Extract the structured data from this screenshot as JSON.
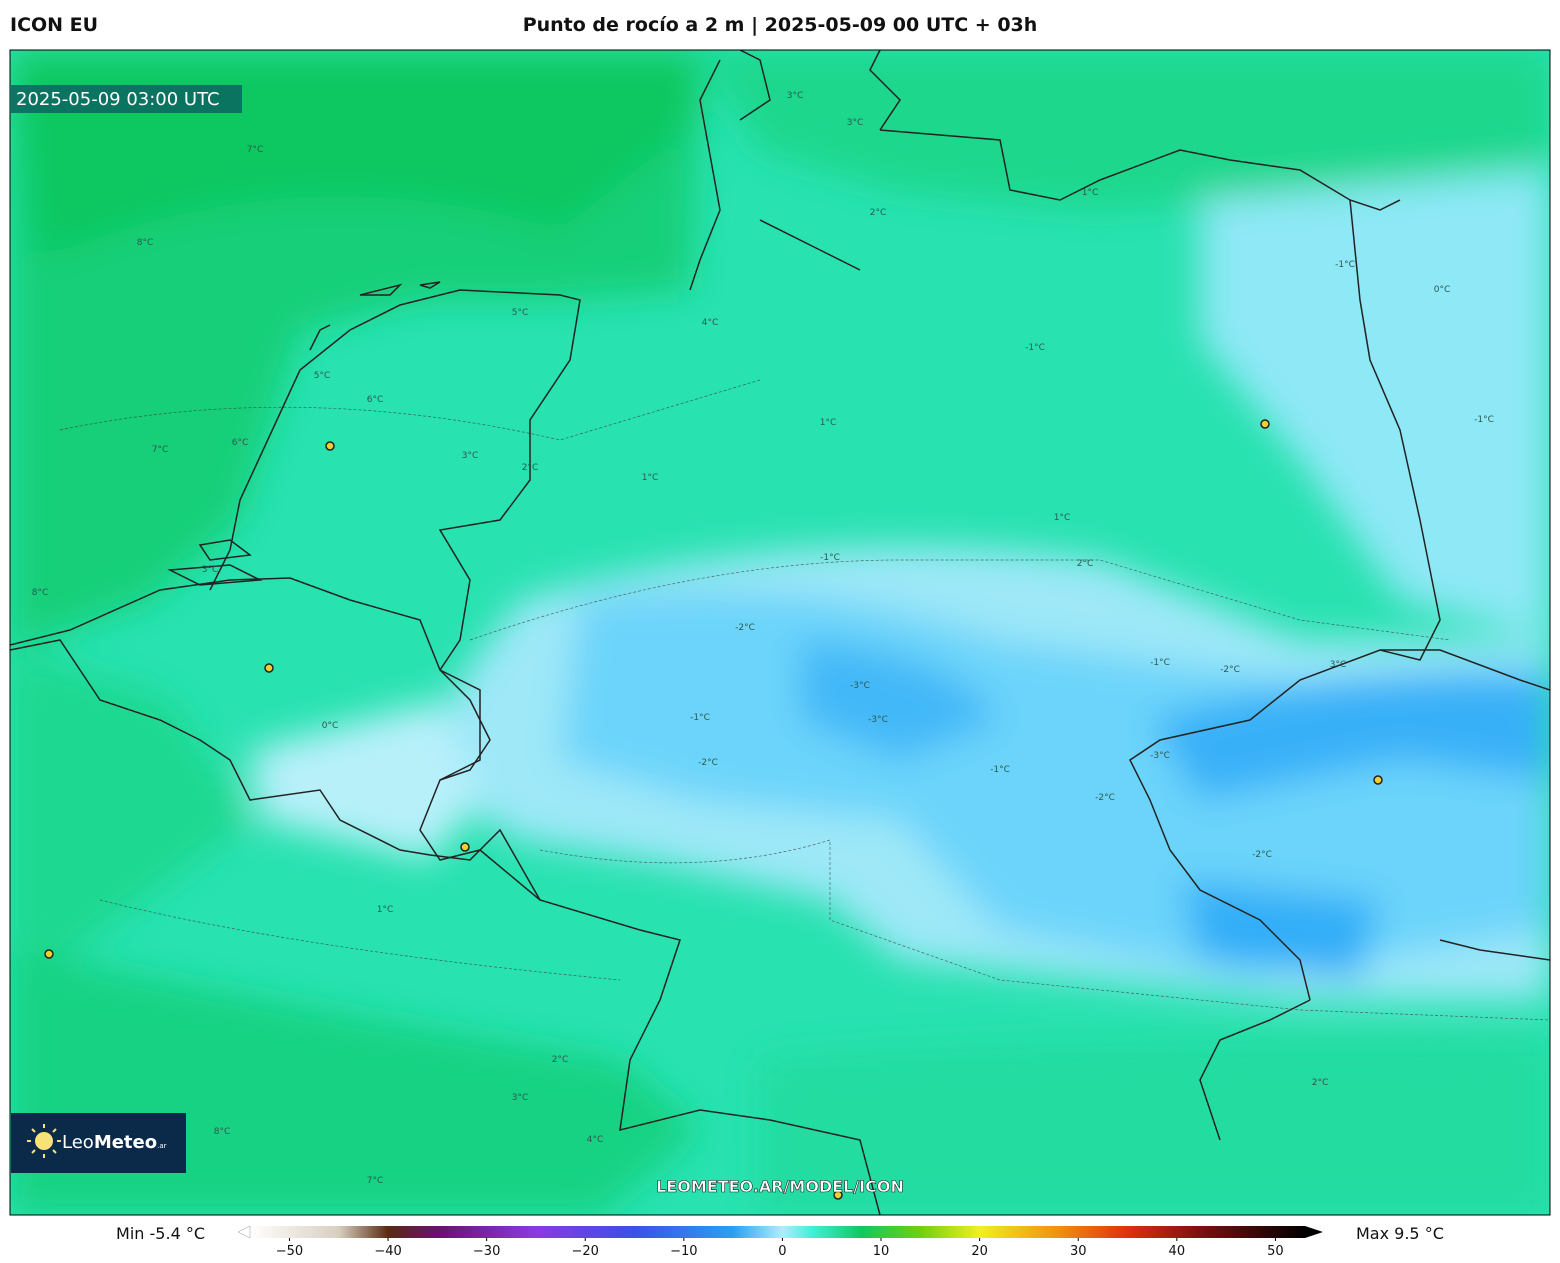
{
  "header": {
    "model": "ICON EU",
    "title": "Punto de rocío a 2 m | 2025-05-09 00 UTC + 03h"
  },
  "map": {
    "valid_time": "2025-05-09 03:00 UTC",
    "watermark": "LEOMETEO.AR/MODEL/ICON",
    "logo": {
      "text": "Leo",
      "bold": "Meteo",
      "suffix": ".ar"
    },
    "contour_labels": [
      "8°C",
      "7°C",
      "8°C",
      "3°C",
      "3°C",
      "5°C",
      "6°C",
      "5°C",
      "6°C",
      "7°C",
      "3°C",
      "2°C",
      "3°C",
      "4°C",
      "2°C",
      "1°C",
      "0°C",
      "1°C",
      "-1°C",
      "-2°C",
      "-3°C",
      "-1°C",
      "-3°C",
      "-2°C",
      "-1°C",
      "-2°C",
      "-3°C",
      "-2°C",
      "-1°C",
      "1°C",
      "2°C",
      "3°C",
      "4°C",
      "8°C",
      "7°C",
      "2°C",
      "1°C",
      "-1°C",
      "0°C",
      "-1°C",
      "-2°C",
      "3°C",
      "1°C",
      "2°C",
      "-1°C"
    ]
  },
  "colorbar": {
    "min_label": "Min -5.4 °C",
    "max_label": "Max 9.5 °C",
    "lim": [
      -54,
      53
    ],
    "ticks": [
      {
        "value": -50,
        "label": "−50"
      },
      {
        "value": -40,
        "label": "−40"
      },
      {
        "value": -30,
        "label": "−30"
      },
      {
        "value": -20,
        "label": "−20"
      },
      {
        "value": -10,
        "label": "−10"
      },
      0,
      10,
      20,
      30,
      40,
      50
    ],
    "stops": [
      {
        "value": -54,
        "color": "#ffffff"
      },
      {
        "value": -45,
        "color": "#d8cfc0"
      },
      {
        "value": -40,
        "color": "#5a2a10"
      },
      {
        "value": -35,
        "color": "#6a1070"
      },
      {
        "value": -25,
        "color": "#8a3ae0"
      },
      {
        "value": -15,
        "color": "#3a50e8"
      },
      {
        "value": -5,
        "color": "#2aa0f0"
      },
      {
        "value": 0,
        "color": "#b0ecff"
      },
      {
        "value": 3,
        "color": "#40f0d8"
      },
      {
        "value": 8,
        "color": "#10c860"
      },
      {
        "value": 14,
        "color": "#70d010"
      },
      {
        "value": 20,
        "color": "#f0f020"
      },
      {
        "value": 28,
        "color": "#f09010"
      },
      {
        "value": 35,
        "color": "#e03010"
      },
      {
        "value": 42,
        "color": "#801010"
      },
      {
        "value": 53,
        "color": "#000000"
      }
    ]
  }
}
